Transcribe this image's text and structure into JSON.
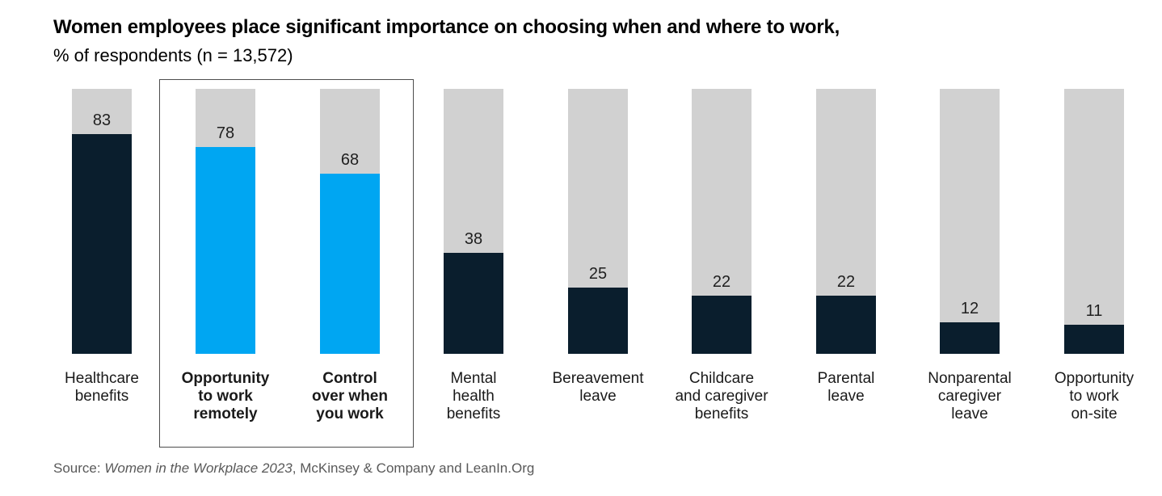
{
  "header": {
    "title": "Women employees place significant importance on choosing when and where to work,",
    "subtitle": "% of respondents (n = 13,572)"
  },
  "source": {
    "prefix": "Source: ",
    "italic_part": "Women in the Workplace 2023",
    "suffix": ", McKinsey & Company and LeanIn.Org"
  },
  "colors": {
    "bar_dark": "#0a1e2d",
    "bar_highlight": "#00a6f2",
    "bar_track": "#d1d1d1",
    "box_border": "#4d4d4d",
    "value_text": "#1f1f1f",
    "label_text": "#1a1a1a",
    "source_text": "#595959"
  },
  "chart_data": {
    "type": "bar",
    "title": "Women employees place significant importance on choosing when and where to work,",
    "subtitle": "% of respondents (n = 13,572)",
    "xlabel": "",
    "ylabel": "% of respondents",
    "ylim": [
      0,
      100
    ],
    "grid": false,
    "legend": "none",
    "track_background_value": 100,
    "highlight_group_note": "bars 2 and 3 are outlined with a box and colored cyan",
    "categories": [
      "Healthcare benefits",
      "Opportunity to work remotely",
      "Control over when you work",
      "Mental health benefits",
      "Bereavement leave",
      "Childcare and caregiver benefits",
      "Parental leave",
      "Nonparental caregiver leave",
      "Opportunity to work on-site"
    ],
    "values": [
      83,
      78,
      68,
      38,
      25,
      22,
      22,
      12,
      11
    ],
    "bars": [
      {
        "label_lines": [
          "Healthcare",
          "benefits"
        ],
        "value": 83,
        "highlight": false
      },
      {
        "label_lines": [
          "Opportunity",
          "to work",
          "remotely"
        ],
        "value": 78,
        "highlight": true
      },
      {
        "label_lines": [
          "Control",
          "over when",
          "you work"
        ],
        "value": 68,
        "highlight": true
      },
      {
        "label_lines": [
          "Mental",
          "health",
          "benefits"
        ],
        "value": 38,
        "highlight": false
      },
      {
        "label_lines": [
          "Bereavement",
          "leave"
        ],
        "value": 25,
        "highlight": false
      },
      {
        "label_lines": [
          "Childcare",
          "and caregiver",
          "benefits"
        ],
        "value": 22,
        "highlight": false
      },
      {
        "label_lines": [
          "Parental",
          "leave"
        ],
        "value": 22,
        "highlight": false
      },
      {
        "label_lines": [
          "Nonparental",
          "caregiver",
          "leave"
        ],
        "value": 12,
        "highlight": false
      },
      {
        "label_lines": [
          "Opportunity",
          "to work",
          "on-site"
        ],
        "value": 11,
        "highlight": false
      }
    ]
  }
}
